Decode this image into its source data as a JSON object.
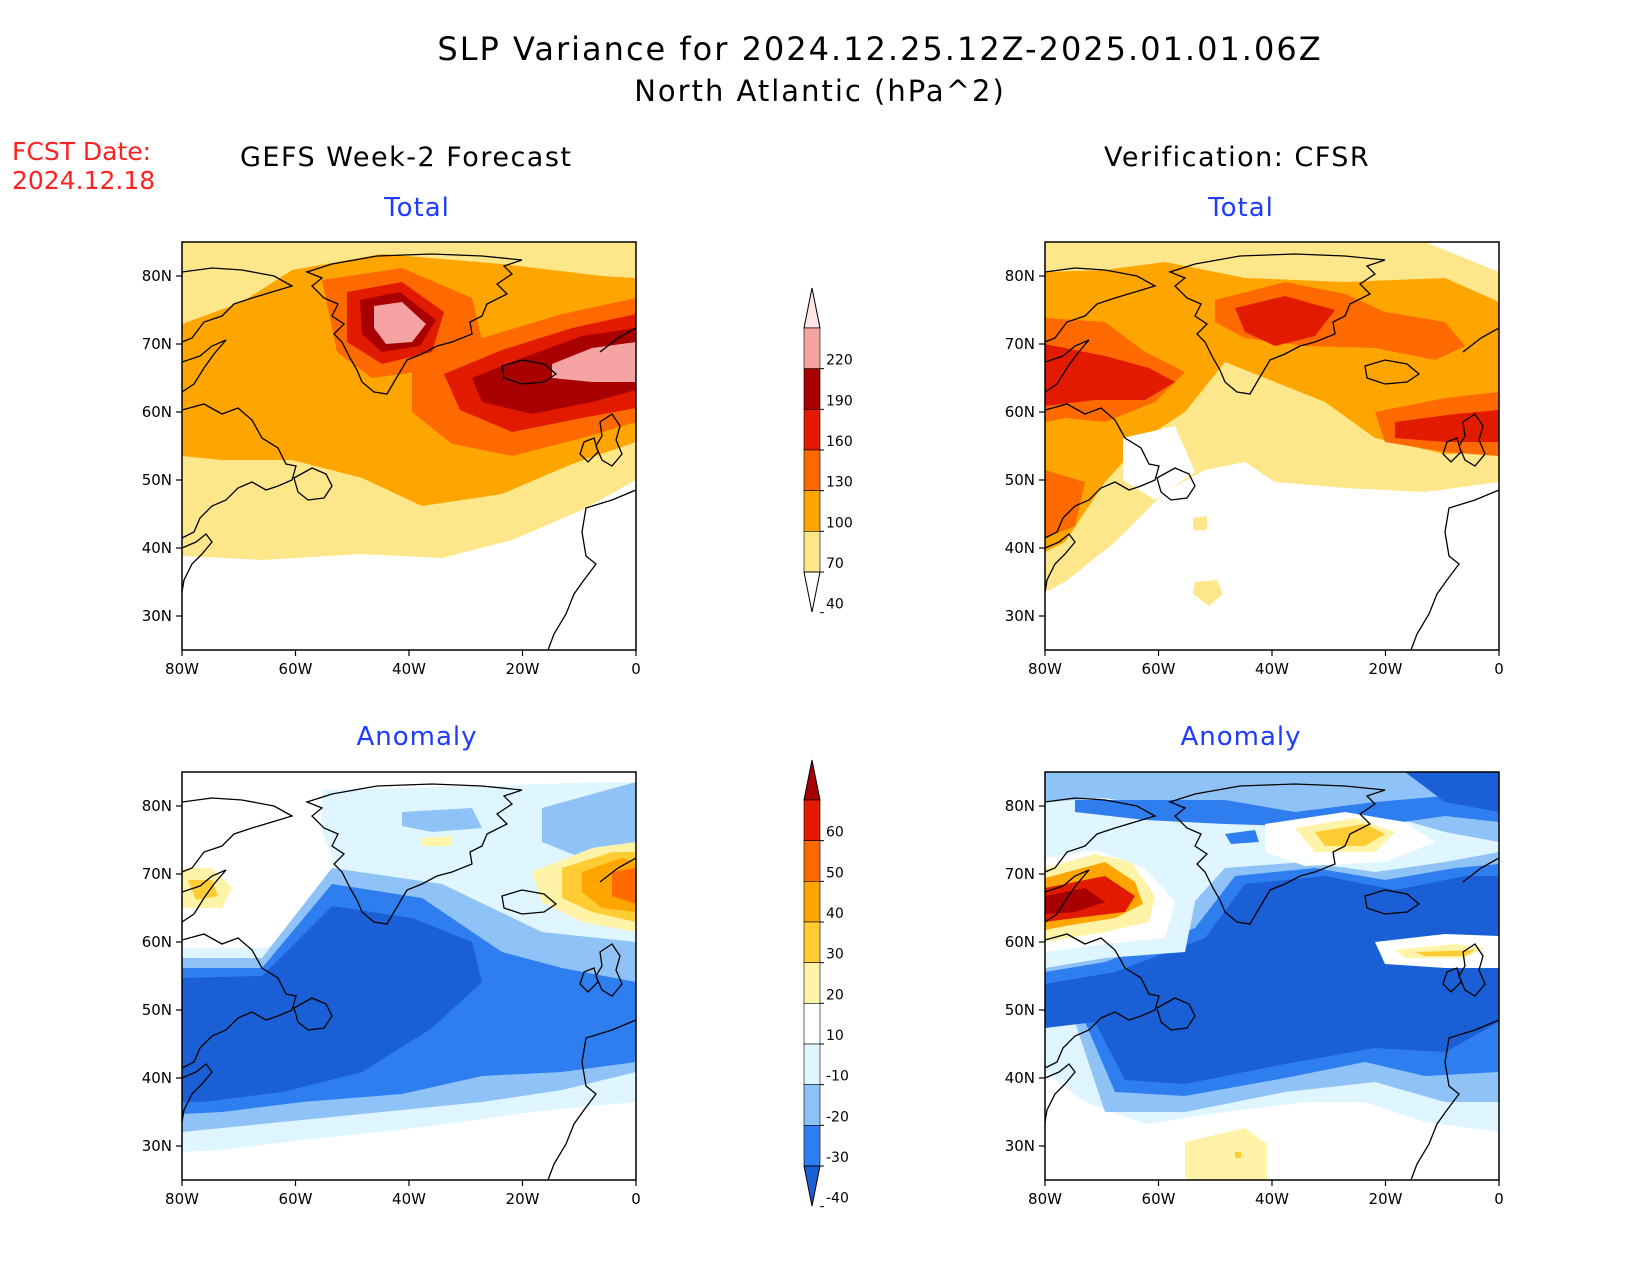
{
  "title": {
    "line1": "SLP Variance for 2024.12.25.12Z-2025.01.01.06Z",
    "line2": "North Atlantic (hPa^2)"
  },
  "forecast": {
    "label": "FCST Date:",
    "date": "2024.12.18"
  },
  "columns": {
    "left": "GEFS Week-2 Forecast",
    "right": "Verification: CFSR"
  },
  "panels": {
    "top_left": "Total",
    "top_right": "Total",
    "bottom_left": "Anomaly",
    "bottom_right": "Anomaly"
  },
  "axes": {
    "lon_ticks": [
      "80W",
      "60W",
      "40W",
      "20W",
      "0"
    ],
    "lat_ticks": [
      "80N",
      "70N",
      "60N",
      "50N",
      "40N",
      "30N"
    ],
    "lon_range": [
      -80,
      0
    ],
    "lat_range": [
      25,
      85
    ]
  },
  "colorbar_total": {
    "levels": [
      "40",
      "70",
      "100",
      "130",
      "160",
      "190",
      "220"
    ],
    "colors": [
      "#ffffff",
      "#fde78a",
      "#ffa500",
      "#ff6a00",
      "#e21b00",
      "#a80000",
      "#f5a3a3",
      "#ffe6e6"
    ]
  },
  "colorbar_anomaly": {
    "levels": [
      "-40",
      "-30",
      "-20",
      "-10",
      "10",
      "20",
      "30",
      "40",
      "50",
      "60"
    ],
    "colors": [
      "#1a5fd6",
      "#2e7ef0",
      "#8fc3f7",
      "#dff5ff",
      "#ffffff",
      "#fff3a8",
      "#ffcc33",
      "#ffa500",
      "#ff6a00",
      "#e21b00",
      "#a80000"
    ]
  }
}
